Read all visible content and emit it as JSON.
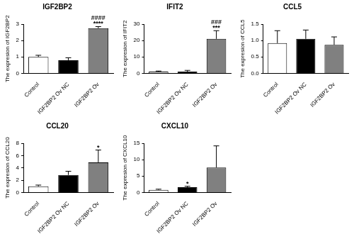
{
  "chart_data": [
    {
      "type": "bar",
      "title": "IGF2BP2",
      "y_label": "The expresion of IGF2BP2",
      "categories": [
        "Control",
        "IGF2BP2 Ov NC",
        "IGF2BP2 Ov"
      ],
      "values": [
        1.0,
        0.8,
        2.75
      ],
      "errors": [
        0.1,
        0.15,
        0.1
      ],
      "significance": [
        null,
        null,
        [
          "####",
          "****"
        ]
      ],
      "colors": [
        "#ffffff",
        "#000000",
        "#808080"
      ],
      "ylim": [
        0,
        3
      ],
      "yticks": [
        0,
        1,
        2,
        3
      ],
      "grid": false
    },
    {
      "type": "bar",
      "title": "IFIT2",
      "y_label": "The expresion of IFIT2",
      "categories": [
        "Control",
        "IGF2BP2 Ov NC",
        "IGF2BP2 Ov"
      ],
      "values": [
        1.0,
        1.0,
        21.0
      ],
      "errors": [
        0.4,
        0.8,
        5.0
      ],
      "significance": [
        null,
        null,
        [
          "###",
          "***"
        ]
      ],
      "colors": [
        "#ffffff",
        "#000000",
        "#808080"
      ],
      "ylim": [
        0,
        30
      ],
      "yticks": [
        0,
        10,
        20,
        30
      ],
      "grid": false
    },
    {
      "type": "bar",
      "title": "CCL5",
      "y_label": "The expresion of CCL5",
      "categories": [
        "Control",
        "IGF2BP2 Ov NC",
        "IGF2BP2 Ov"
      ],
      "values": [
        0.92,
        1.05,
        0.87
      ],
      "errors": [
        0.38,
        0.27,
        0.24
      ],
      "significance": [
        null,
        null,
        null
      ],
      "colors": [
        "#ffffff",
        "#000000",
        "#808080"
      ],
      "ylim": [
        0,
        1.5
      ],
      "yticks": [
        {
          "value": 0,
          "label": "0.0"
        },
        {
          "value": 0.5,
          "label": "0.5"
        },
        {
          "value": 1,
          "label": "1.0"
        },
        {
          "value": 1.5,
          "label": "1.5"
        }
      ],
      "grid": false
    },
    {
      "type": "bar",
      "title": "CCL20",
      "y_label": "The expresion of CCL20",
      "categories": [
        "Control",
        "IGF2BP2 Ov NC",
        "IGF2BP2 Ov"
      ],
      "values": [
        1.0,
        2.85,
        4.9
      ],
      "errors": [
        0.2,
        0.6,
        2.0
      ],
      "significance": [
        null,
        null,
        [
          "*"
        ]
      ],
      "colors": [
        "#ffffff",
        "#000000",
        "#808080"
      ],
      "ylim": [
        0,
        8
      ],
      "yticks": [
        0,
        2,
        4,
        6,
        8
      ],
      "grid": false
    },
    {
      "type": "bar",
      "title": "CXCL10",
      "y_label": "The expresion of CXCL10",
      "categories": [
        "Control",
        "IGF2BP2 Ov NC",
        "IGF2BP2 Ov"
      ],
      "values": [
        0.8,
        1.6,
        7.6
      ],
      "errors": [
        0.2,
        0.3,
        6.6
      ],
      "significance": [
        null,
        [
          "*"
        ],
        null
      ],
      "colors": [
        "#ffffff",
        "#000000",
        "#808080"
      ],
      "ylim": [
        0,
        15
      ],
      "yticks": [
        0,
        5,
        10,
        15
      ],
      "grid": false
    }
  ]
}
